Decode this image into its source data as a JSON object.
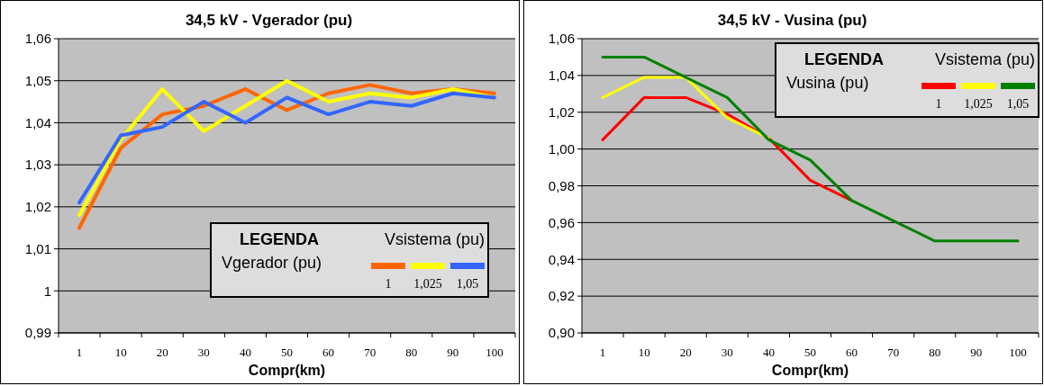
{
  "chart_data": [
    {
      "type": "line",
      "title": "34,5 kV - Vgerador (pu)",
      "xlabel": "Compr(km)",
      "categories": [
        "1",
        "10",
        "20",
        "30",
        "40",
        "50",
        "60",
        "70",
        "80",
        "90",
        "100"
      ],
      "ylim": [
        0.99,
        1.06
      ],
      "yticks": [
        {
          "value": 0.99,
          "label": "0,99"
        },
        {
          "value": 1,
          "label": "1"
        },
        {
          "value": 1.01,
          "label": "1,01"
        },
        {
          "value": 1.02,
          "label": "1,02"
        },
        {
          "value": 1.03,
          "label": "1,03"
        },
        {
          "value": 1.04,
          "label": "1,04"
        },
        {
          "value": 1.05,
          "label": "1,05"
        },
        {
          "value": 1.06,
          "label": "1,06"
        }
      ],
      "grid": "y",
      "legend": "bottom right",
      "legend_title": "Vsistema (pu)",
      "annotations": [
        "LEGENDA",
        "Vgerador (pu)"
      ],
      "series": [
        {
          "name": "1",
          "color": "#ff6600",
          "values": [
            1.015,
            1.034,
            1.042,
            1.044,
            1.048,
            1.043,
            1.047,
            1.049,
            1.047,
            1.048,
            1.047
          ]
        },
        {
          "name": "1,025",
          "color": "#ffff00",
          "values": [
            1.018,
            1.036,
            1.048,
            1.038,
            1.044,
            1.05,
            1.045,
            1.047,
            1.046,
            1.048,
            1.046
          ]
        },
        {
          "name": "1,05",
          "color": "#3366ff",
          "values": [
            1.021,
            1.037,
            1.039,
            1.045,
            1.04,
            1.046,
            1.042,
            1.045,
            1.044,
            1.047,
            1.046
          ]
        }
      ]
    },
    {
      "type": "line",
      "title": "34,5 kV - Vusina (pu)",
      "xlabel": "Compr(km)",
      "categories": [
        "1",
        "10",
        "20",
        "30",
        "40",
        "50",
        "60",
        "70",
        "80",
        "90",
        "100"
      ],
      "ylim": [
        0.9,
        1.06
      ],
      "yticks": [
        {
          "value": 0.9,
          "label": "0,90"
        },
        {
          "value": 0.92,
          "label": "0,92"
        },
        {
          "value": 0.94,
          "label": "0,94"
        },
        {
          "value": 0.96,
          "label": "0,96"
        },
        {
          "value": 0.98,
          "label": "0,98"
        },
        {
          "value": 1.0,
          "label": "1,00"
        },
        {
          "value": 1.02,
          "label": "1,02"
        },
        {
          "value": 1.04,
          "label": "1,04"
        },
        {
          "value": 1.06,
          "label": "1,06"
        }
      ],
      "grid": "y",
      "legend": "top right",
      "legend_title": "Vsistema (pu)",
      "annotations": [
        "LEGENDA",
        "Vusina (pu)"
      ],
      "series": [
        {
          "name": "1",
          "color": "#ff0000",
          "values": [
            1.005,
            1.028,
            1.028,
            1.019,
            1.006,
            0.983,
            0.972,
            null,
            null,
            null,
            null
          ]
        },
        {
          "name": "1,025",
          "color": "#ffff00",
          "values": [
            1.028,
            1.039,
            1.039,
            1.017,
            1.006,
            null,
            null,
            null,
            null,
            null,
            null
          ]
        },
        {
          "name": "1,05",
          "color": "#008000",
          "values": [
            1.05,
            1.05,
            1.039,
            1.028,
            1.005,
            0.994,
            0.972,
            0.961,
            0.95,
            0.95,
            0.95
          ]
        }
      ]
    }
  ]
}
